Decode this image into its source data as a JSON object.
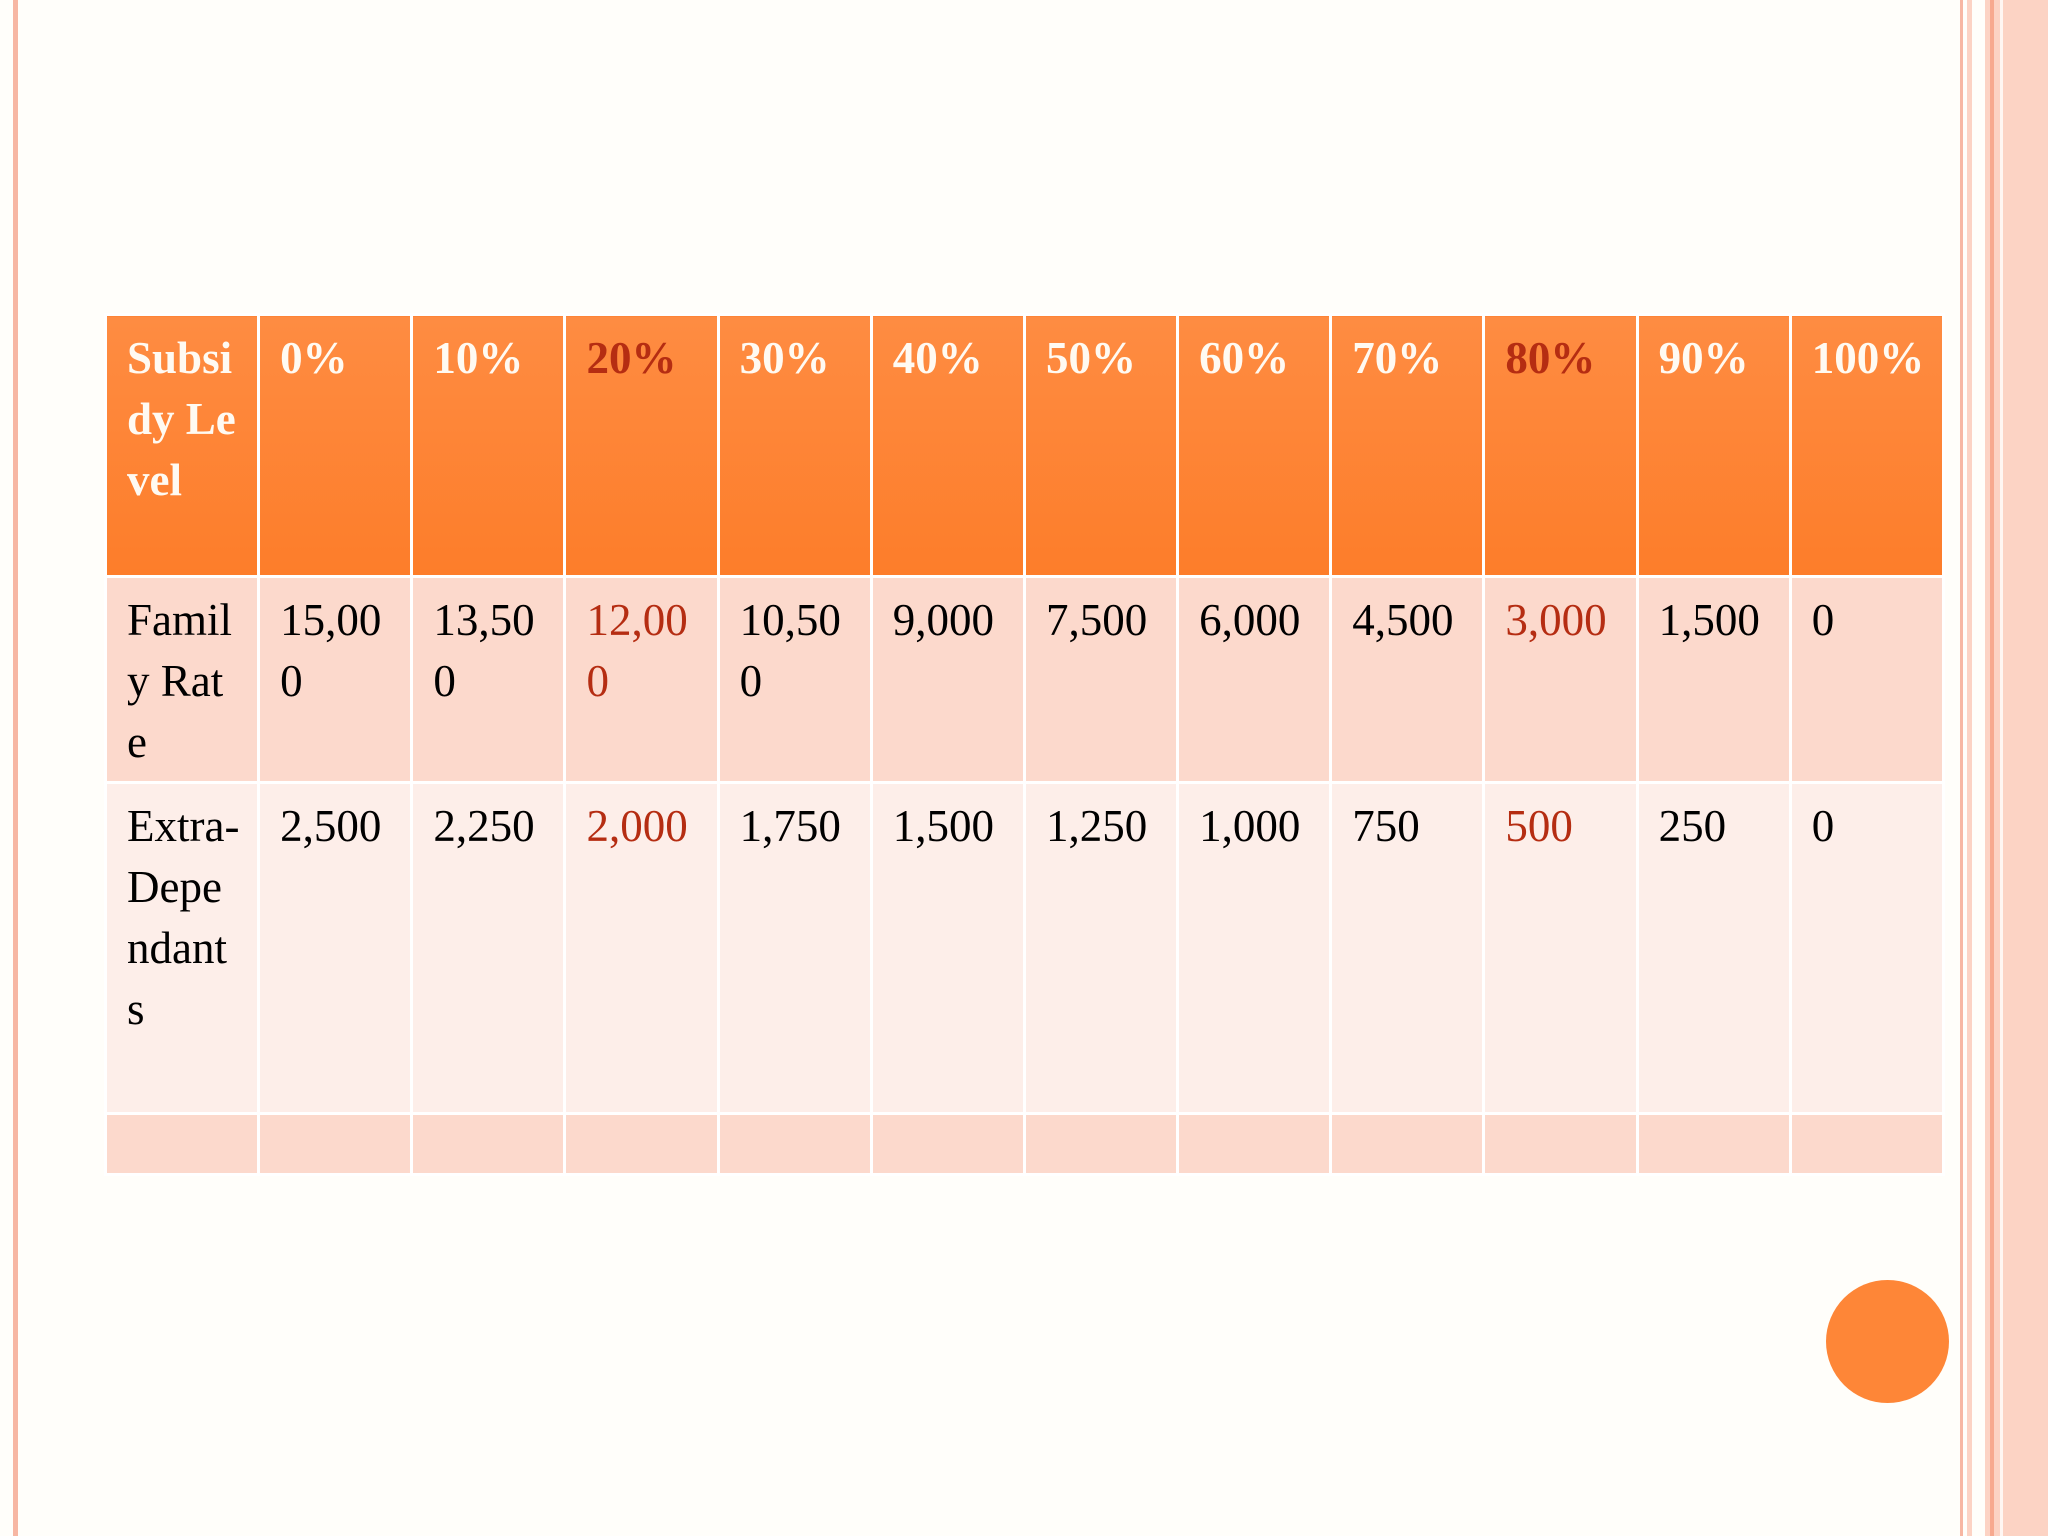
{
  "table": {
    "header": [
      "Subsidy Level",
      "0%",
      "10%",
      "20%",
      "30%",
      "40%",
      "50%",
      "60%",
      "70%",
      "80%",
      "90%",
      "100%"
    ],
    "rows": [
      [
        "Family Rate",
        "15,000",
        "13,500",
        "12,000",
        "10,500",
        "9,000",
        "7,500",
        "6,000",
        "4,500",
        "3,000",
        "1,500",
        "0"
      ],
      [
        "Extra-Dependants",
        "2,500",
        "2,250",
        "2,000",
        "1,750",
        "1,500",
        "1,250",
        "1,000",
        "750",
        "500",
        "250",
        "0"
      ]
    ]
  }
}
